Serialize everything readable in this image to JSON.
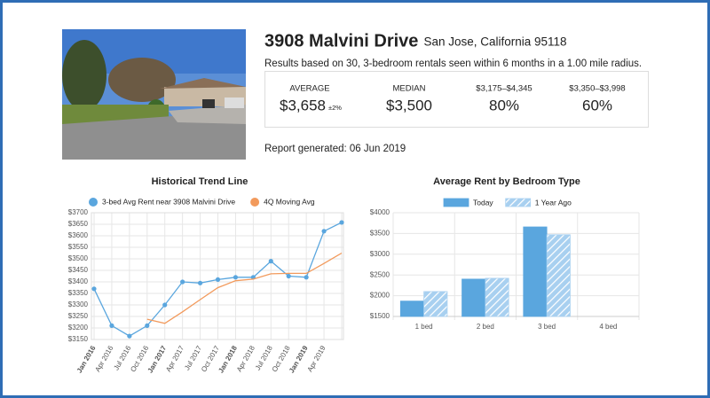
{
  "header": {
    "street": "3908 Malvini Drive",
    "city": "San Jose, California 95118",
    "summary": "Results based on 30, 3-bedroom rentals seen within 6 months in a 1.00 mile radius.",
    "report": "Report generated: 06 Jun 2019"
  },
  "stats": [
    {
      "label": "AVERAGE",
      "value": "$3,658",
      "note": "±2%"
    },
    {
      "label": "MEDIAN",
      "value": "$3,500"
    },
    {
      "label": "$3,175–$4,345",
      "value": "80%"
    },
    {
      "label": "$3,350–$3,998",
      "value": "60%"
    }
  ],
  "chart_data": [
    {
      "type": "line",
      "title": "Historical Trend Line",
      "categories": [
        "Jan 2016",
        "Apr 2016",
        "Jul 2016",
        "Oct 2016",
        "Jan 2017",
        "Apr 2017",
        "Jul 2017",
        "Oct 2017",
        "Jan 2018",
        "Apr 2018",
        "Jul 2018",
        "Oct 2018",
        "Jan 2019",
        "Apr 2019",
        null
      ],
      "series": [
        {
          "name": "3-bed Avg Rent near 3908 Malvini Drive",
          "color": "#5aa6de",
          "markers": true,
          "values": [
            3370,
            3210,
            3165,
            3210,
            3300,
            3400,
            3395,
            3410,
            3420,
            3420,
            3490,
            3425,
            3420,
            3620,
            3658
          ]
        },
        {
          "name": "4Q Moving Avg",
          "color": "#f29a5c",
          "markers": false,
          "values": [
            null,
            null,
            null,
            3238,
            3220,
            3270,
            3323,
            3375,
            3405,
            3412,
            3435,
            3437,
            3437,
            3480,
            3525
          ]
        }
      ],
      "ylim": [
        3150,
        3700
      ],
      "yticks": [
        {
          "value": 3150,
          "label": "$3150"
        },
        {
          "value": 3200,
          "label": "$3200"
        },
        {
          "value": 3250,
          "label": "$3250"
        },
        {
          "value": 3300,
          "label": "$3300"
        },
        {
          "value": 3350,
          "label": "$3350"
        },
        {
          "value": 3400,
          "label": "$3400"
        },
        {
          "value": 3450,
          "label": "$3450"
        },
        {
          "value": 3500,
          "label": "$3500"
        },
        {
          "value": 3550,
          "label": "$3550"
        },
        {
          "value": 3600,
          "label": "$3600"
        },
        {
          "value": 3650,
          "label": "$3650"
        },
        {
          "value": 3700,
          "label": "$3700"
        }
      ],
      "grid": true
    },
    {
      "type": "bar",
      "title": "Average Rent by Bedroom Type",
      "categories": [
        "1 bed",
        "2 bed",
        "3 bed",
        "4 bed"
      ],
      "series": [
        {
          "name": "Today",
          "color": "#5aa6de",
          "hatched": false,
          "values": [
            1870,
            2400,
            3658,
            null
          ]
        },
        {
          "name": "1 Year Ago",
          "color": "#a8d0f0",
          "hatched": true,
          "values": [
            2100,
            2420,
            3470,
            null
          ]
        }
      ],
      "ylim": [
        1500,
        4000
      ],
      "yticks": [
        {
          "value": 1500,
          "label": "$1500"
        },
        {
          "value": 2000,
          "label": "$2000"
        },
        {
          "value": 2500,
          "label": "$2500"
        },
        {
          "value": 3000,
          "label": "$3000"
        },
        {
          "value": 3500,
          "label": "$3500"
        },
        {
          "value": 4000,
          "label": "$4000"
        }
      ],
      "grid": true
    }
  ]
}
